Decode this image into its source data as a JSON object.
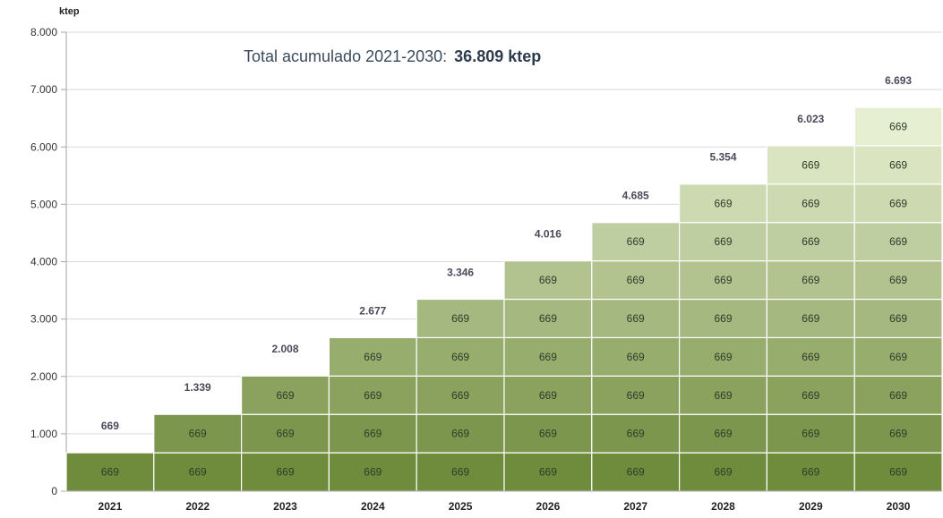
{
  "chart_data": {
    "type": "bar",
    "stacked": true,
    "title_prefix": "Total acumulado 2021-2030:",
    "title_value": "36.809 ktep",
    "ylabel": "ktep",
    "ylim": [
      0,
      8000
    ],
    "yticks": [
      {
        "value": 0,
        "label": "0"
      },
      {
        "value": 1000,
        "label": "1.000"
      },
      {
        "value": 2000,
        "label": "2.000"
      },
      {
        "value": 3000,
        "label": "3.000"
      },
      {
        "value": 4000,
        "label": "4.000"
      },
      {
        "value": 5000,
        "label": "5.000"
      },
      {
        "value": 6000,
        "label": "6.000"
      },
      {
        "value": 7000,
        "label": "7.000"
      },
      {
        "value": 8000,
        "label": "8.000"
      }
    ],
    "grid": true,
    "categories": [
      "2021",
      "2022",
      "2023",
      "2024",
      "2025",
      "2026",
      "2027",
      "2028",
      "2029",
      "2030"
    ],
    "segment_value": 669,
    "segment_label": "669",
    "segments_per_bar": [
      1,
      2,
      3,
      4,
      5,
      6,
      7,
      8,
      9,
      10
    ],
    "totals": [
      669,
      1339,
      2008,
      2677,
      3346,
      4016,
      4685,
      5354,
      6023,
      6693
    ],
    "total_labels": [
      "669",
      "1.339",
      "2.008",
      "2.677",
      "3.346",
      "4.016",
      "4.685",
      "5.354",
      "6.023",
      "6.693"
    ],
    "colors": {
      "layer_bottom": "#6f8c3c",
      "layer_top": "#e7efd2",
      "grid": "#d9d9d9",
      "axis": "#a6a6a6"
    }
  }
}
